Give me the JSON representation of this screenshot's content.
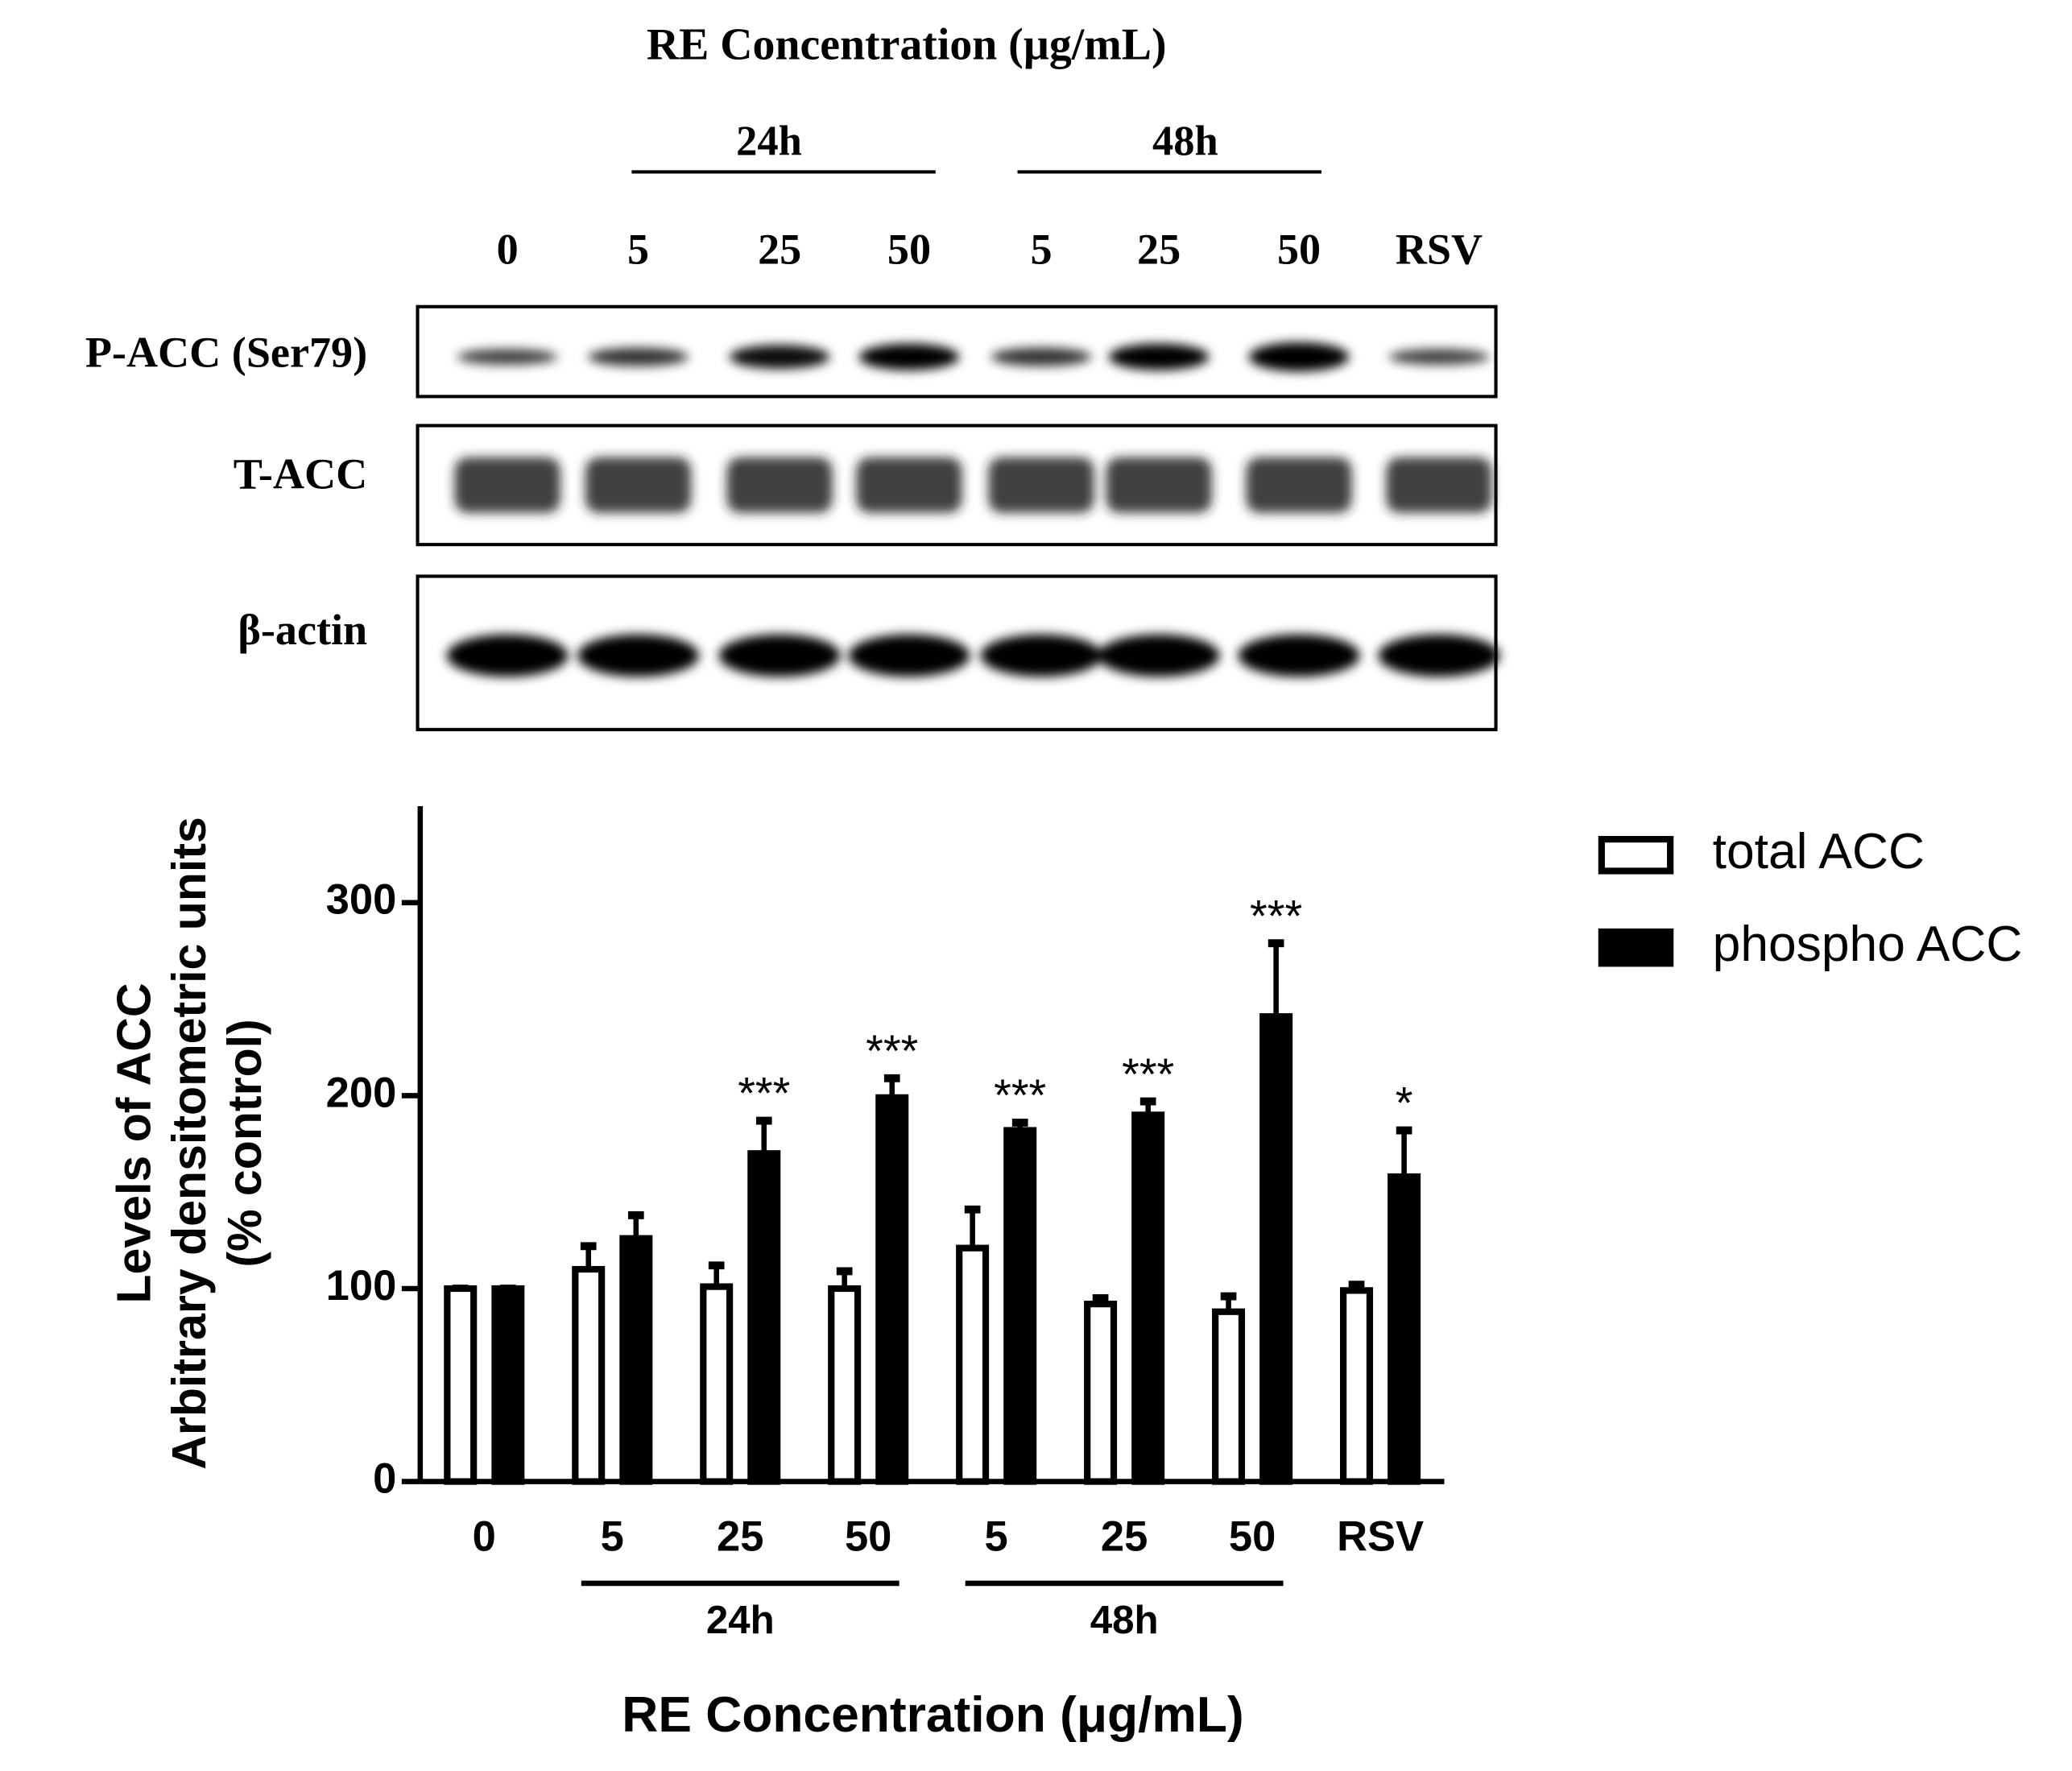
{
  "blot": {
    "title": "RE Concentration (µg/mL)",
    "groups": [
      "24h",
      "48h"
    ],
    "lanes": [
      "0",
      "5",
      "25",
      "50",
      "5",
      "25",
      "50",
      "RSV"
    ],
    "rows": [
      "P-ACC (Ser79)",
      "T-ACC",
      "β-actin"
    ]
  },
  "chart_data": {
    "type": "bar",
    "categories": [
      "0",
      "5",
      "25",
      "50",
      "5",
      "25",
      "50",
      "RSV"
    ],
    "groups": [
      "24h",
      "48h"
    ],
    "x_label": "RE Concentration (μg/mL)",
    "y_label": [
      "Levels of ACC",
      "Arbitrary densitometric units",
      "(% control)"
    ],
    "series": [
      {
        "name": "total ACC",
        "color": "#ffffff",
        "values": [
          100,
          110,
          101,
          100,
          121,
          92,
          88,
          99
        ],
        "errors": [
          0,
          12,
          11,
          9,
          20,
          3,
          8,
          3
        ]
      },
      {
        "name": "phospho ACC",
        "color": "#000000",
        "values": [
          100,
          126,
          170,
          199,
          182,
          190,
          241,
          158
        ],
        "errors": [
          0,
          12,
          17,
          10,
          4,
          7,
          38,
          24
        ]
      }
    ],
    "annotations": [
      null,
      null,
      "***",
      "***",
      "***",
      "***",
      "***",
      "*"
    ],
    "ylim": [
      0,
      350
    ],
    "yticks": [
      0,
      100,
      200,
      300
    ]
  }
}
